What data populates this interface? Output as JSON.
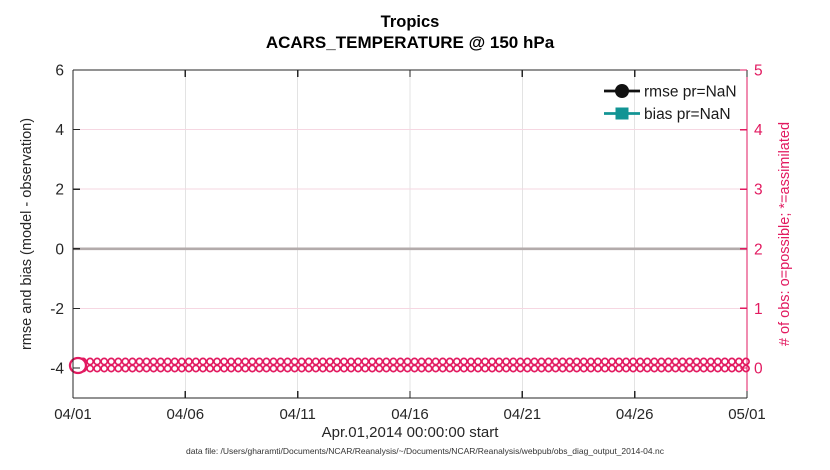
{
  "figure": {
    "background": "#ffffff"
  },
  "chart_data": {
    "type": "line",
    "title": "Tropics",
    "subtitle": "ACARS_TEMPERATURE @ 150 hPa",
    "xlabel": "Apr.01,2014 00:00:00 start",
    "footer": "data file: /Users/gharamti/Documents/NCAR/Reanalysis/~/Documents/NCAR/Reanalysis/webpub/obs_diag_output_2014-04.nc",
    "x_ticks": [
      "04/01",
      "04/06",
      "04/11",
      "04/16",
      "04/21",
      "04/26",
      "05/01"
    ],
    "left_axis": {
      "label": "rmse and bias (model - observation)",
      "ticks": [
        "6",
        "4",
        "2",
        "0",
        "-2",
        "-4"
      ],
      "color": "#262626"
    },
    "right_axis": {
      "label": "# of obs: o=possible; *=assimilated",
      "ticks": [
        "5",
        "4",
        "3",
        "2",
        "1",
        "0"
      ],
      "color": "#e21a60"
    },
    "series": [
      {
        "name": "rmse pr=NaN",
        "marker": "circle",
        "color": "#111111",
        "values": "NaN"
      },
      {
        "name": "bias pr=NaN",
        "marker": "square",
        "color": "#129494",
        "values": "NaN"
      }
    ],
    "obs_count_markers": {
      "possible_value": 0,
      "assimilated_value": 0,
      "marker_columns": 96,
      "marker_rows": 2,
      "color": "#e21a60",
      "note": "o and * observation-count markers all at 0 along the bottom of the plot"
    },
    "zero_line": {
      "value": 0,
      "color": "#b3abab"
    },
    "grid": {
      "vertical_color": "#e3e3e3",
      "horizontal_color": "#f6d7e2"
    },
    "legend_position": "top-right-inside"
  }
}
